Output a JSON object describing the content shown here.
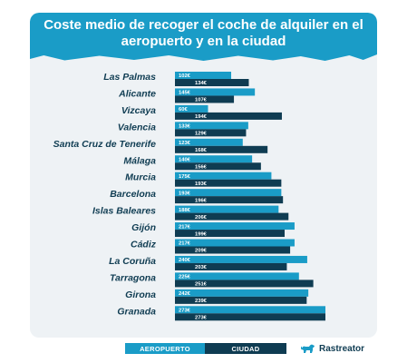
{
  "title": "Coste medio de recoger el coche de alquiler en el aeropuerto y en la ciudad",
  "legend": {
    "aeropuerto": "AEROPUERTO",
    "ciudad": "CIUDAD"
  },
  "brand": {
    "name": "Rastreator",
    "icon": "dog-icon"
  },
  "colors": {
    "aeropuerto": "#1a9cc7",
    "ciudad": "#0f3c52",
    "title_bg": "#1a9cc7",
    "card_bg": "#eef2f5"
  },
  "chart_data": {
    "type": "bar",
    "orientation": "horizontal",
    "title": "Coste medio de recoger el coche de alquiler en el aeropuerto y en la ciudad",
    "categories": [
      "Las Palmas",
      "Alicante",
      "Vizcaya",
      "Valencia",
      "Santa Cruz de Tenerife",
      "Málaga",
      "Murcia",
      "Barcelona",
      "Islas Baleares",
      "Gijón",
      "Cádiz",
      "La Coruña",
      "Tarragona",
      "Girona",
      "Granada"
    ],
    "series": [
      {
        "name": "AEROPUERTO",
        "values": [
          102,
          145,
          60,
          133,
          123,
          140,
          175,
          193,
          188,
          217,
          217,
          240,
          225,
          242,
          273
        ],
        "labels": [
          "102€",
          "145€",
          "60€",
          "133€",
          "123€",
          "140€",
          "175€",
          "193€",
          "188€",
          "217€",
          "217€",
          "240€",
          "225€",
          "242€",
          "273€"
        ]
      },
      {
        "name": "CIUDAD",
        "values": [
          134,
          107,
          194,
          129,
          168,
          156,
          193,
          196,
          206,
          199,
          209,
          203,
          251,
          239,
          273
        ],
        "labels": [
          "134€",
          "107€",
          "194€",
          "129€",
          "168€",
          "156€",
          "193€",
          "196€",
          "206€",
          "199€",
          "209€",
          "203€",
          "251€",
          "239€",
          "273€"
        ]
      }
    ],
    "xlim": [
      0,
      273
    ],
    "grid": false,
    "legend_position": "bottom"
  }
}
